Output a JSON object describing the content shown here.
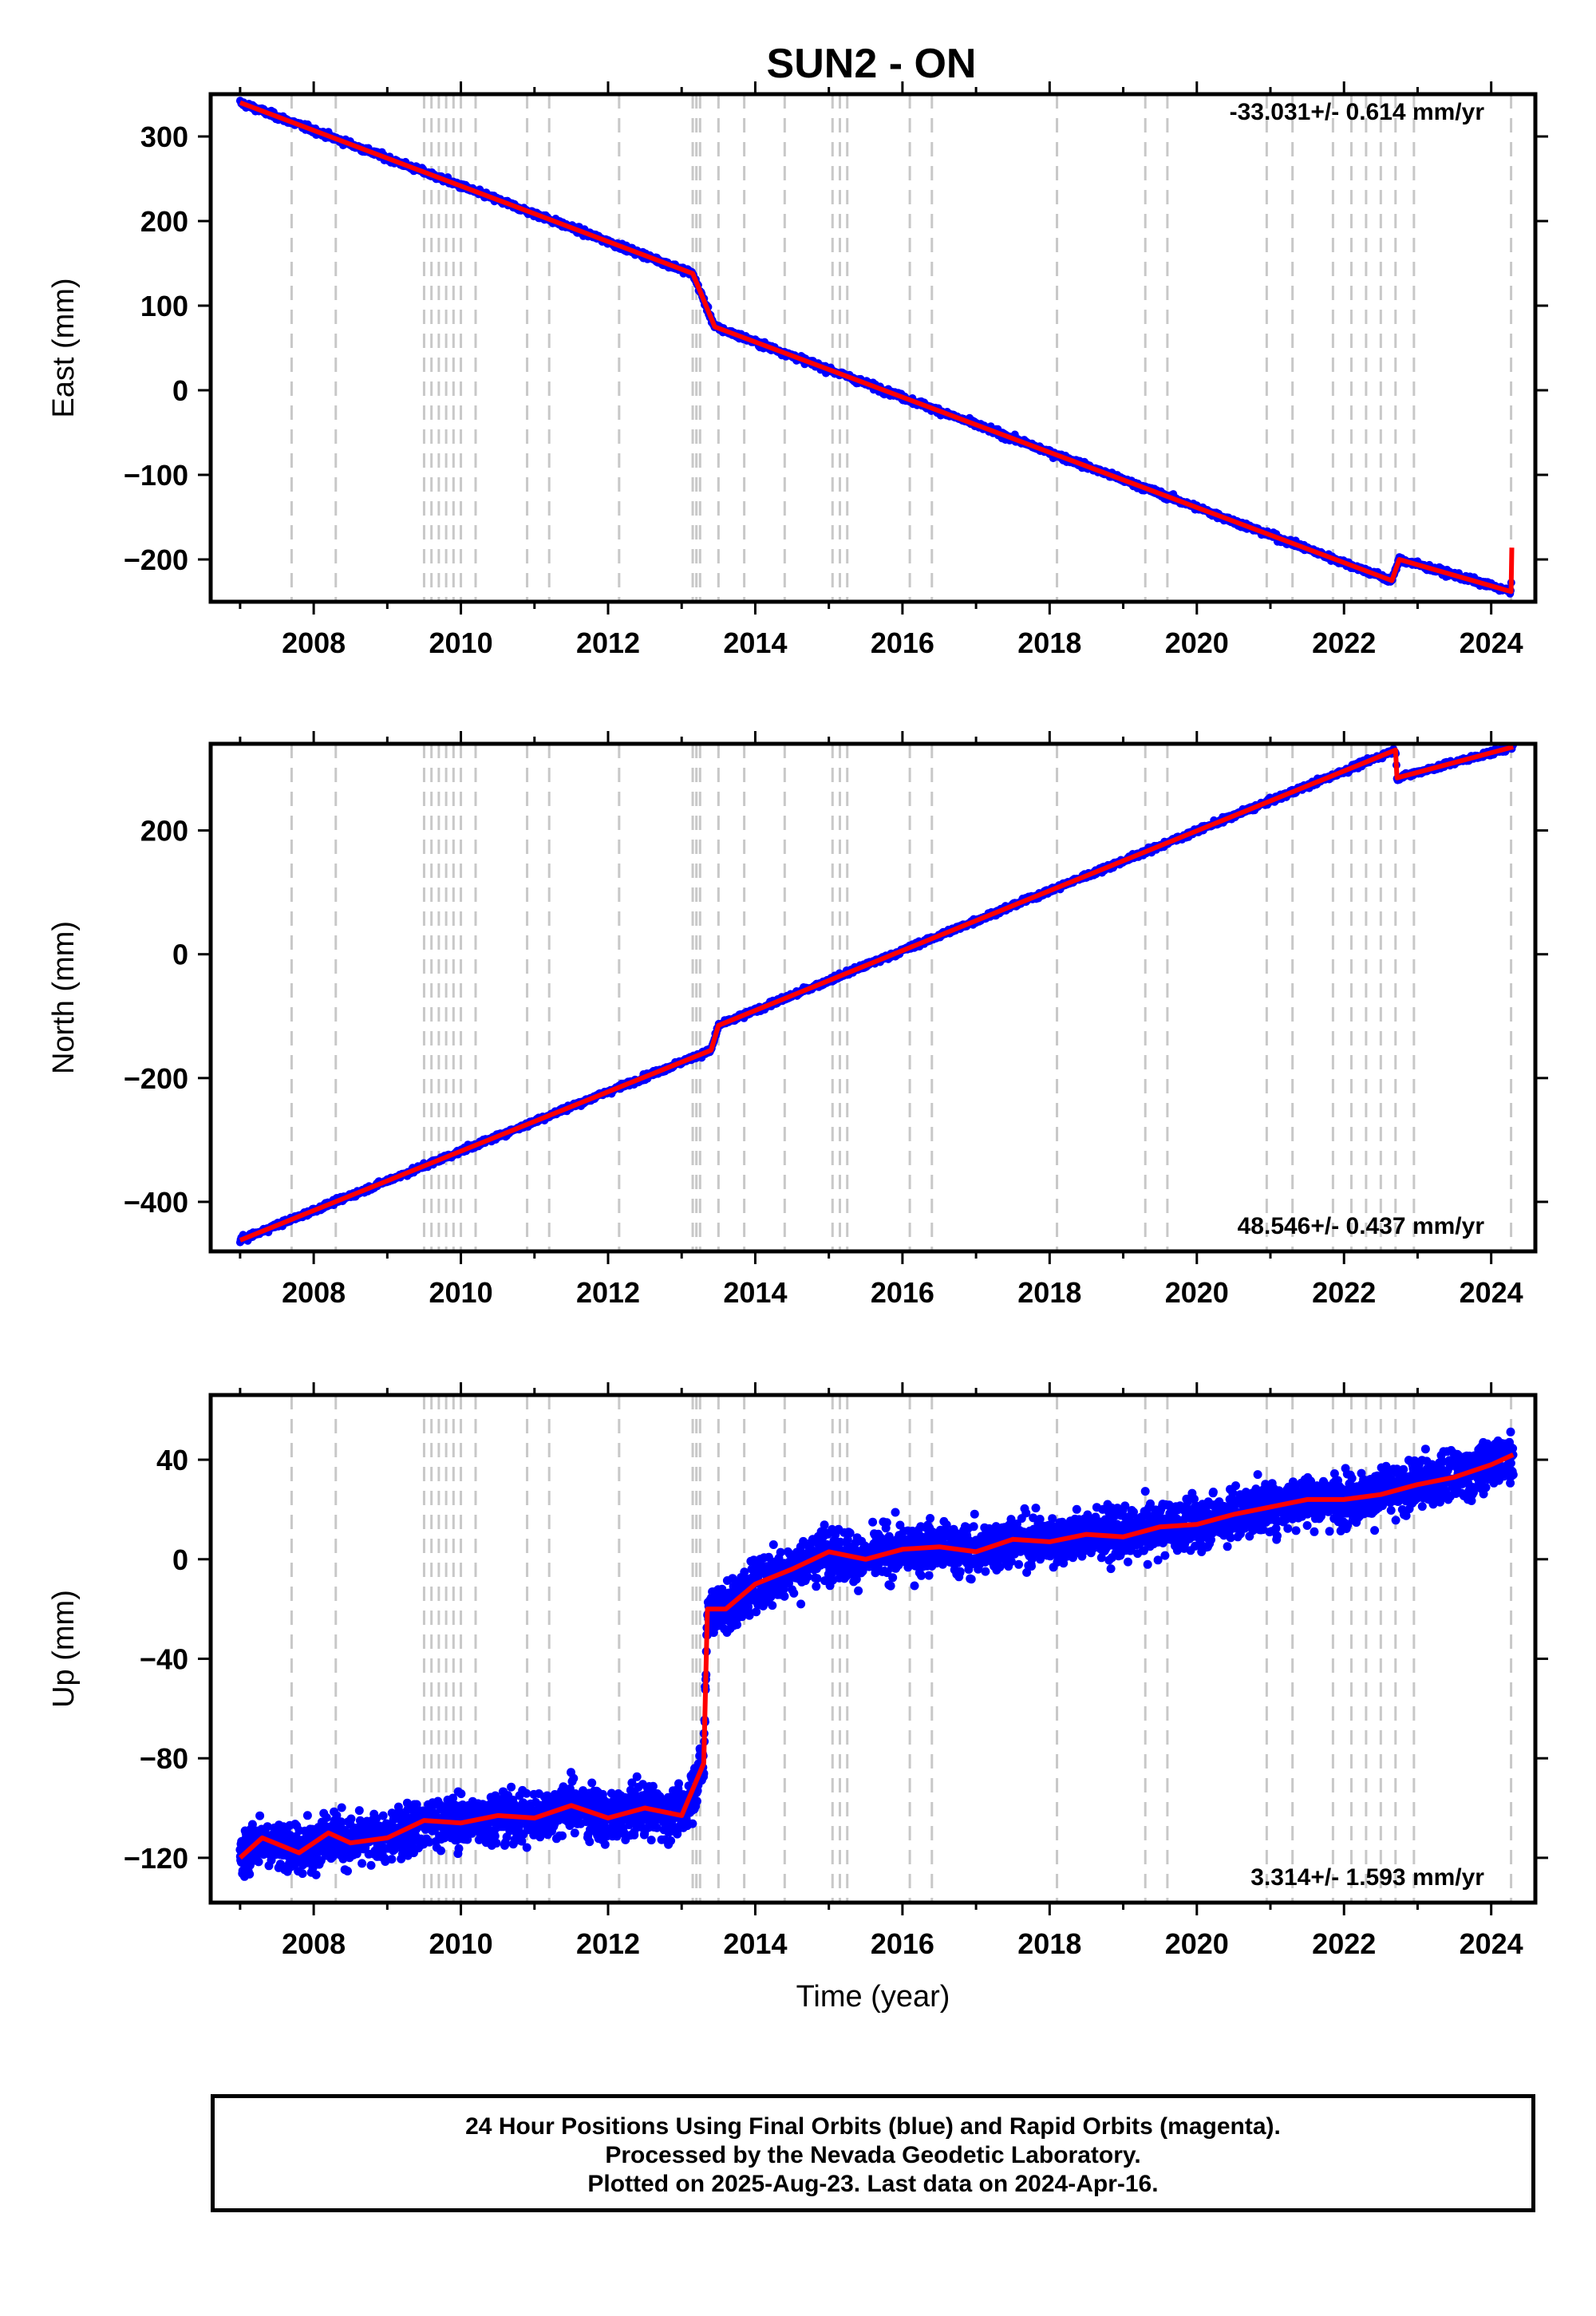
{
  "title": "SUN2 - ON",
  "chart_data": [
    {
      "type": "scatter",
      "panel": "east",
      "ylabel": "East (mm)",
      "xlabel": "",
      "xlim": [
        2006.6,
        2024.6
      ],
      "ylim": [
        -250,
        350
      ],
      "xticks": [
        2008,
        2010,
        2012,
        2014,
        2016,
        2018,
        2020,
        2022,
        2024
      ],
      "yticks": [
        -200,
        -100,
        0,
        100,
        200,
        300
      ],
      "rate_label": "-33.031+/- 0.614 mm/yr",
      "rate_position": "top-right",
      "grid": false,
      "noise_mm": 2.5,
      "series": [
        {
          "color": "#0000ff",
          "style": "points"
        },
        {
          "color": "#ff0000",
          "style": "line",
          "x": [
            2007.0,
            2013.15,
            2013.45,
            2022.65,
            2022.75,
            2024.27,
            2024.28
          ],
          "y": [
            340,
            138,
            75,
            -225,
            -200,
            -238,
            -186
          ]
        }
      ]
    },
    {
      "type": "scatter",
      "panel": "north",
      "ylabel": "North (mm)",
      "xlabel": "",
      "xlim": [
        2006.6,
        2024.6
      ],
      "ylim": [
        -480,
        340
      ],
      "xticks": [
        2008,
        2010,
        2012,
        2014,
        2016,
        2018,
        2020,
        2022,
        2024
      ],
      "yticks": [
        -400,
        -200,
        0,
        200
      ],
      "rate_label": "48.546+/- 0.437 mm/yr",
      "rate_position": "bottom-right",
      "grid": false,
      "noise_mm": 3,
      "series": [
        {
          "color": "#0000ff",
          "style": "points"
        },
        {
          "color": "#ff0000",
          "style": "line",
          "x": [
            2007.0,
            2013.4,
            2013.5,
            2022.7,
            2022.72,
            2024.3
          ],
          "y": [
            -462,
            -155,
            -115,
            330,
            285,
            335
          ]
        }
      ]
    },
    {
      "type": "scatter",
      "panel": "up",
      "ylabel": "Up (mm)",
      "xlabel": "Time (year)",
      "xlim": [
        2006.6,
        2024.6
      ],
      "ylim": [
        -138,
        66
      ],
      "xticks": [
        2008,
        2010,
        2012,
        2014,
        2016,
        2018,
        2020,
        2022,
        2024
      ],
      "yticks": [
        -120,
        -80,
        -40,
        0,
        40
      ],
      "rate_label": "3.314+/- 1.593 mm/yr",
      "rate_position": "bottom-right",
      "grid": false,
      "noise_mm": 7,
      "series": [
        {
          "color": "#0000ff",
          "style": "points"
        },
        {
          "color": "#ff0000",
          "style": "line",
          "x": [
            2007.0,
            2007.3,
            2007.8,
            2008.2,
            2008.5,
            2009.0,
            2009.5,
            2010.0,
            2010.5,
            2011.0,
            2011.5,
            2012.0,
            2012.5,
            2013.0,
            2013.3,
            2013.35,
            2013.6,
            2014.0,
            2014.5,
            2015.0,
            2015.5,
            2016.0,
            2016.5,
            2017.0,
            2017.5,
            2018.0,
            2018.5,
            2019.0,
            2019.5,
            2020.0,
            2020.5,
            2021.0,
            2021.5,
            2022.0,
            2022.5,
            2023.0,
            2023.5,
            2024.0,
            2024.3
          ],
          "y": [
            -120,
            -112,
            -118,
            -110,
            -114,
            -112,
            -105,
            -106,
            -103,
            -104,
            -99,
            -104,
            -100,
            -103,
            -82,
            -20,
            -20,
            -10,
            -4,
            3,
            0,
            4,
            5,
            3,
            8,
            7,
            10,
            9,
            13,
            14,
            18,
            21,
            24,
            24,
            26,
            30,
            33,
            38,
            42
          ]
        }
      ]
    }
  ],
  "vlines": [
    2007.7,
    2008.3,
    2009.5,
    2009.6,
    2009.7,
    2009.8,
    2009.9,
    2010.0,
    2010.2,
    2010.9,
    2011.2,
    2012.15,
    2013.15,
    2013.2,
    2013.25,
    2013.5,
    2013.85,
    2014.4,
    2015.05,
    2015.15,
    2015.25,
    2016.1,
    2016.4,
    2018.1,
    2019.3,
    2019.6,
    2020.95,
    2021.3,
    2021.85,
    2022.1,
    2022.3,
    2022.5,
    2022.7,
    2022.95,
    2024.27
  ],
  "footer": {
    "line1": "24 Hour Positions Using Final Orbits (blue) and Rapid Orbits (magenta).",
    "line2": "Processed by the Nevada Geodetic Laboratory.",
    "line3": "Plotted on 2025-Aug-23. Last data on 2024-Apr-16."
  }
}
